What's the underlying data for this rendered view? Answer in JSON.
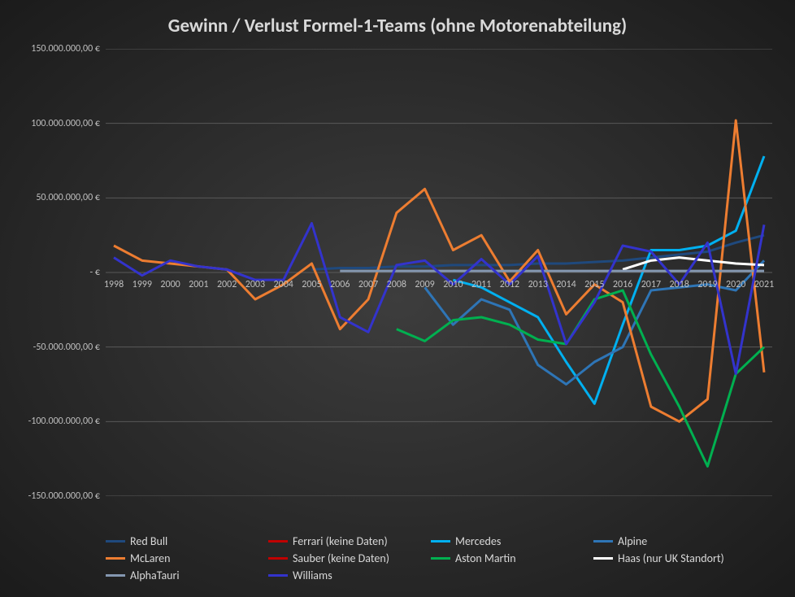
{
  "chart": {
    "type": "line",
    "title": "Gewinn / Verlust Formel-1-Teams (ohne Motorenabteilung)",
    "title_fontsize": 23,
    "title_color": "#d9d9d9",
    "background": "radial-gradient(#3d3d3d,#1b1b1b)",
    "grid_color": "#595959",
    "axis_label_color": "#bfbfbf",
    "axis_label_fontsize": 12,
    "line_width": 3,
    "ylim": [
      -150000000,
      150000000
    ],
    "yticks": [
      -150000000,
      -100000000,
      -50000000,
      0,
      50000000,
      100000000,
      150000000
    ],
    "ytick_labels": [
      "-150.000.000,00 €",
      "-100.000.000,00 €",
      "-50.000.000,00 €",
      "- €",
      "50.000.000,00 €",
      "100.000.000,00 €",
      "150.000.000,00 €"
    ],
    "categories": [
      "1998",
      "1999",
      "2000",
      "2001",
      "2002",
      "2003",
      "2004",
      "2005",
      "2006",
      "2007",
      "2008",
      "2009",
      "2010",
      "2011",
      "2012",
      "2013",
      "2014",
      "2015",
      "2016",
      "2017",
      "2018",
      "2019",
      "2020",
      "2021"
    ],
    "series": [
      {
        "name": "Red Bull",
        "color": "#1f497d",
        "data": [
          null,
          null,
          null,
          null,
          null,
          null,
          null,
          2000000,
          3000000,
          3000000,
          4000000,
          4000000,
          5000000,
          5000000,
          5000000,
          6000000,
          6000000,
          7000000,
          8000000,
          10000000,
          12000000,
          14000000,
          20000000,
          25000000
        ]
      },
      {
        "name": "Ferrari (keine Daten)",
        "color": "#c00000",
        "data": [
          null,
          null,
          null,
          null,
          null,
          null,
          null,
          null,
          null,
          null,
          null,
          null,
          null,
          null,
          null,
          null,
          null,
          null,
          null,
          null,
          null,
          null,
          null,
          null
        ]
      },
      {
        "name": "Mercedes",
        "color": "#00b0f0",
        "data": [
          null,
          null,
          null,
          null,
          null,
          null,
          null,
          null,
          null,
          null,
          null,
          null,
          -5000000,
          -10000000,
          -20000000,
          -30000000,
          -60000000,
          -88000000,
          -35000000,
          15000000,
          15000000,
          18000000,
          28000000,
          78000000
        ]
      },
      {
        "name": "Alpine",
        "color": "#2e75b6",
        "data": [
          null,
          null,
          null,
          null,
          null,
          null,
          null,
          null,
          null,
          null,
          null,
          -10000000,
          -35000000,
          -18000000,
          -25000000,
          -62000000,
          -75000000,
          -60000000,
          -50000000,
          -12000000,
          -10000000,
          -8000000,
          -12000000,
          8000000
        ]
      },
      {
        "name": "McLaren",
        "color": "#ed7d31",
        "data": [
          18000000,
          8000000,
          6000000,
          4000000,
          2000000,
          -18000000,
          -8000000,
          6000000,
          -38000000,
          -18000000,
          40000000,
          56000000,
          15000000,
          25000000,
          -6000000,
          15000000,
          -28000000,
          -8000000,
          -20000000,
          -90000000,
          -100000000,
          -85000000,
          102000000,
          -67000000
        ]
      },
      {
        "name": "Sauber (keine Daten)",
        "color": "#c00000",
        "data": [
          null,
          null,
          null,
          null,
          null,
          null,
          null,
          null,
          null,
          null,
          null,
          null,
          null,
          null,
          null,
          null,
          null,
          null,
          null,
          null,
          null,
          null,
          null,
          null
        ]
      },
      {
        "name": "Aston Martin",
        "color": "#00b050",
        "data": [
          null,
          null,
          null,
          null,
          null,
          null,
          null,
          null,
          null,
          null,
          -38000000,
          -46000000,
          -32000000,
          -30000000,
          -35000000,
          -45000000,
          -48000000,
          -18000000,
          -12000000,
          -55000000,
          -90000000,
          -130000000,
          -68000000,
          -50000000
        ]
      },
      {
        "name": "Haas (nur UK Standort)",
        "color": "#ffffff",
        "data": [
          null,
          null,
          null,
          null,
          null,
          null,
          null,
          null,
          null,
          null,
          null,
          null,
          null,
          null,
          null,
          null,
          null,
          null,
          2000000,
          8000000,
          10000000,
          8000000,
          6000000,
          5000000
        ]
      },
      {
        "name": "AlphaTauri",
        "color": "#8497b0",
        "data": [
          null,
          null,
          null,
          null,
          null,
          null,
          null,
          null,
          1000000,
          1000000,
          1000000,
          1000000,
          1000000,
          1000000,
          1000000,
          1000000,
          1000000,
          1000000,
          1000000,
          1000000,
          1000000,
          1000000,
          1000000,
          1000000
        ]
      },
      {
        "name": "Williams",
        "color": "#3333cc",
        "data": [
          10000000,
          -2000000,
          8000000,
          4000000,
          2000000,
          -5000000,
          -5000000,
          33000000,
          -30000000,
          -40000000,
          5000000,
          8000000,
          -8000000,
          9000000,
          -8000000,
          11000000,
          -48000000,
          -20000000,
          18000000,
          14000000,
          -8000000,
          20000000,
          -68000000,
          32000000
        ]
      }
    ],
    "legend": {
      "position": "bottom",
      "fontsize": 14,
      "text_color": "#d9d9d9"
    }
  }
}
